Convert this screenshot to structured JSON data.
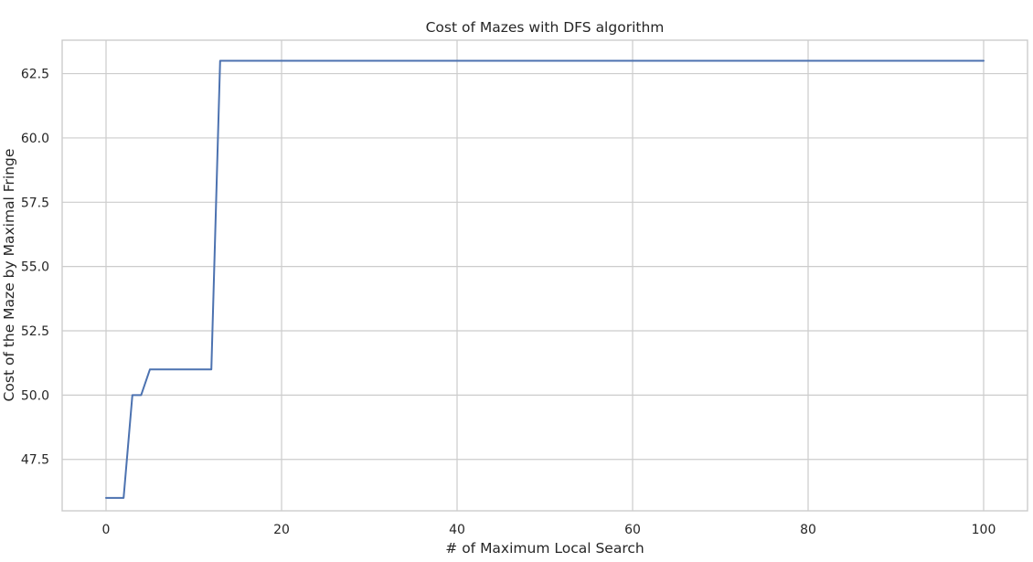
{
  "chart_data": {
    "type": "line",
    "title": "Cost of Mazes with DFS algorithm",
    "xlabel": "# of Maximum Local Search",
    "ylabel": "Cost of the Maze by Maximal Fringe",
    "xlim": [
      -5,
      105
    ],
    "ylim": [
      45.5,
      63.8
    ],
    "xticks": [
      0,
      20,
      40,
      60,
      80,
      100
    ],
    "yticks": [
      47.5,
      50.0,
      52.5,
      55.0,
      57.5,
      60.0,
      62.5
    ],
    "ytick_labels": [
      "47.5",
      "50.0",
      "52.5",
      "55.0",
      "57.5",
      "60.0",
      "62.5"
    ],
    "grid": true,
    "line_color": "#4c72b0",
    "series": [
      {
        "x": [
          0,
          1,
          2,
          3,
          4,
          5,
          6,
          7,
          8,
          9,
          10,
          11,
          12,
          13,
          20,
          40,
          60,
          80,
          100
        ],
        "values": [
          46,
          46,
          46,
          50,
          50,
          51,
          51,
          51,
          51,
          51,
          51,
          51,
          51,
          63,
          63,
          63,
          63,
          63,
          63
        ]
      }
    ]
  }
}
